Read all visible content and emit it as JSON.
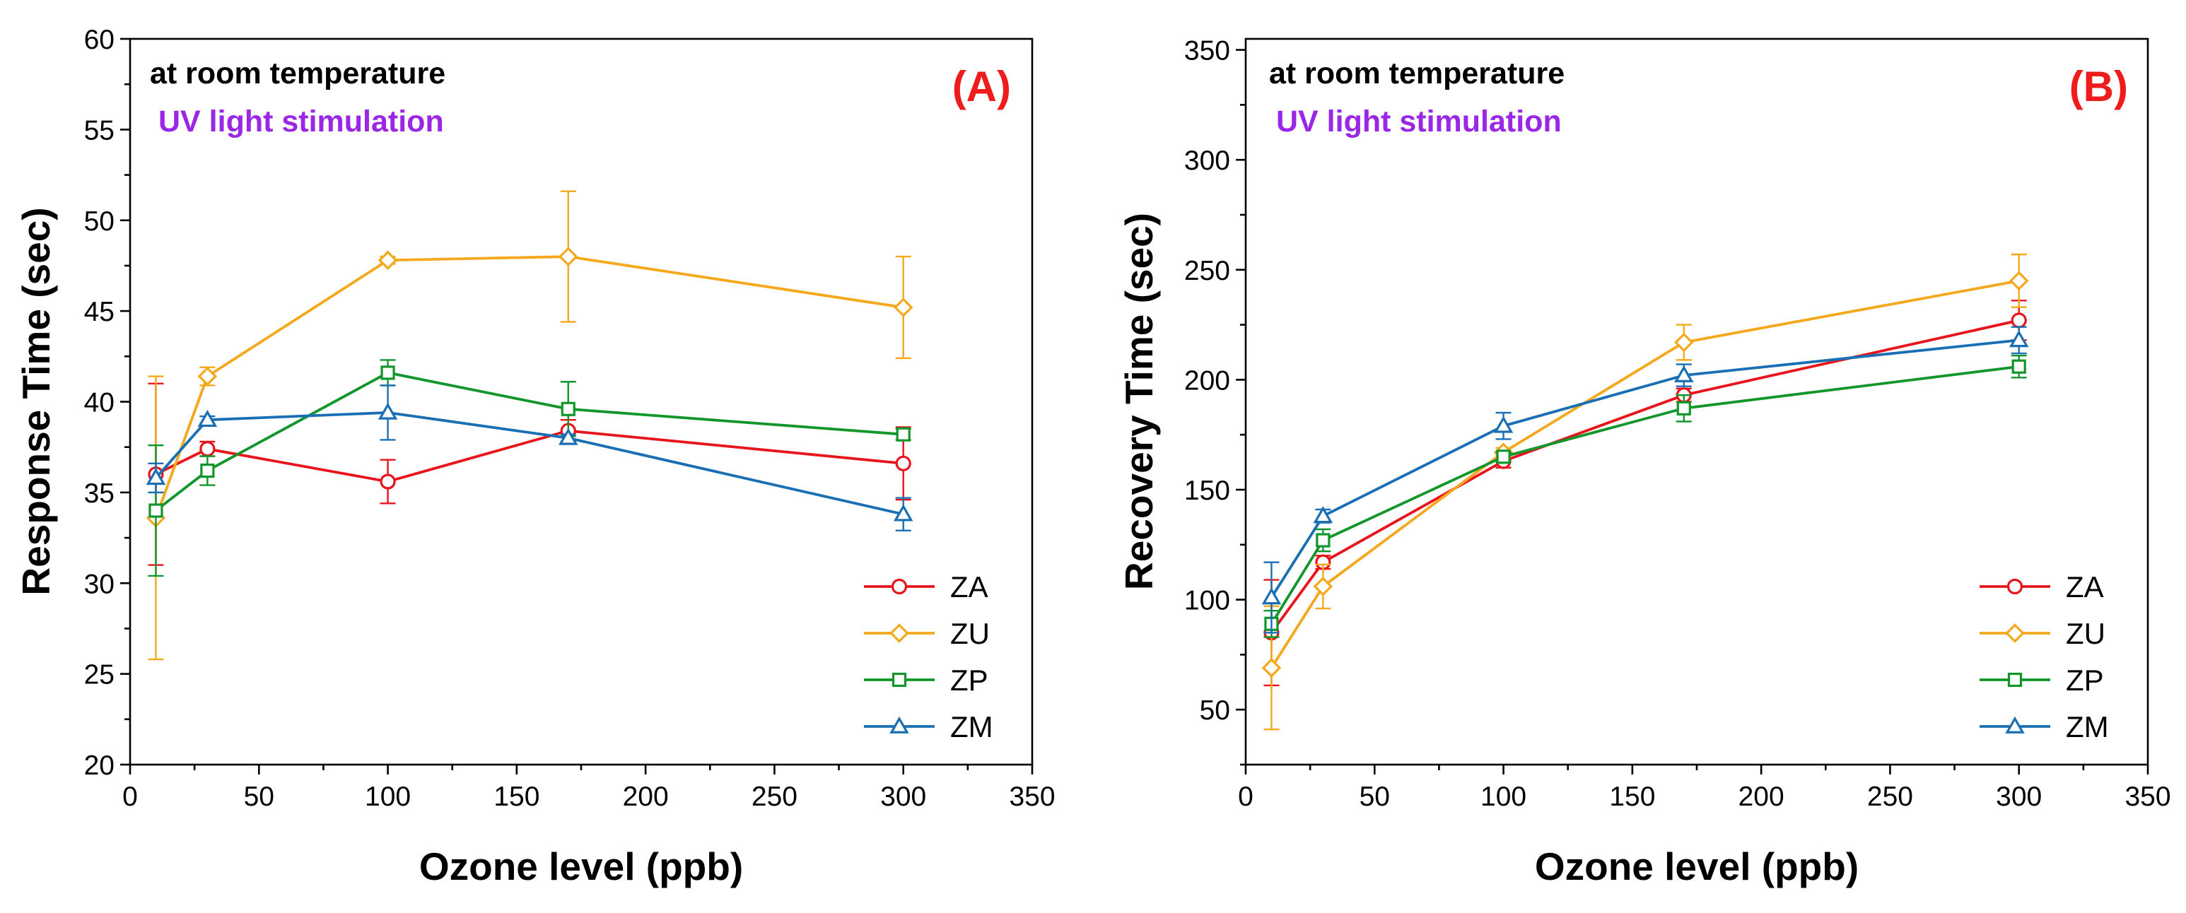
{
  "chart_data": [
    {
      "panel": "A",
      "type": "line",
      "panel_label": "(A)",
      "annotations": [
        "at room temperature",
        "UV light stimulation"
      ],
      "xlabel": "Ozone level (ppb)",
      "ylabel": "Response Time (sec)",
      "xlim": [
        0,
        350
      ],
      "ylim": [
        20,
        60
      ],
      "xticks": [
        0,
        50,
        100,
        150,
        200,
        250,
        300,
        350
      ],
      "yticks": [
        20,
        25,
        30,
        35,
        40,
        45,
        50,
        55,
        60
      ],
      "x": [
        10,
        30,
        100,
        170,
        300
      ],
      "legend_position": "lower-right",
      "series": [
        {
          "name": "ZA",
          "color": "#e8141c",
          "marker": "circle",
          "values": [
            36.0,
            37.4,
            35.6,
            38.4,
            36.6
          ],
          "errors": [
            5.0,
            0.4,
            1.2,
            0.6,
            2.0
          ]
        },
        {
          "name": "ZU",
          "color": "#f5a81c",
          "marker": "diamond",
          "values": [
            33.6,
            41.4,
            47.8,
            48.0,
            45.2
          ],
          "errors": [
            7.8,
            0.5,
            0.2,
            3.6,
            2.8
          ]
        },
        {
          "name": "ZP",
          "color": "#12962c",
          "marker": "square",
          "values": [
            34.0,
            36.2,
            41.6,
            39.6,
            38.2
          ],
          "errors": [
            3.6,
            0.8,
            0.7,
            1.5,
            0.3
          ]
        },
        {
          "name": "ZM",
          "color": "#1a6fb4",
          "marker": "triangle",
          "values": [
            35.8,
            39.0,
            39.4,
            38.0,
            33.8
          ],
          "errors": [
            0.8,
            0.2,
            1.5,
            0.2,
            0.9
          ]
        }
      ]
    },
    {
      "panel": "B",
      "type": "line",
      "panel_label": "(B)",
      "annotations": [
        "at room temperature",
        "UV light stimulation"
      ],
      "xlabel": "Ozone level (ppb)",
      "ylabel": "Recovery Time (sec)",
      "xlim": [
        0,
        350
      ],
      "ylim": [
        25,
        355
      ],
      "xticks": [
        0,
        50,
        100,
        150,
        200,
        250,
        300,
        350
      ],
      "yticks": [
        50,
        100,
        150,
        200,
        250,
        300,
        350
      ],
      "x": [
        10,
        30,
        100,
        170,
        300
      ],
      "legend_position": "lower-right",
      "series": [
        {
          "name": "ZA",
          "color": "#e8141c",
          "marker": "circle",
          "values": [
            85,
            117,
            163,
            193,
            227
          ],
          "errors": [
            24,
            3,
            3,
            3,
            9
          ]
        },
        {
          "name": "ZU",
          "color": "#f5a81c",
          "marker": "diamond",
          "values": [
            69,
            106,
            167,
            217,
            245
          ],
          "errors": [
            28,
            10,
            2,
            8,
            12
          ]
        },
        {
          "name": "ZP",
          "color": "#12962c",
          "marker": "square",
          "values": [
            89,
            127,
            165,
            187,
            206
          ],
          "errors": [
            6,
            5,
            2,
            6,
            5
          ]
        },
        {
          "name": "ZM",
          "color": "#1a6fb4",
          "marker": "triangle",
          "values": [
            101,
            138,
            179,
            202,
            218
          ],
          "errors": [
            16,
            3,
            6,
            5,
            6
          ]
        }
      ]
    }
  ]
}
